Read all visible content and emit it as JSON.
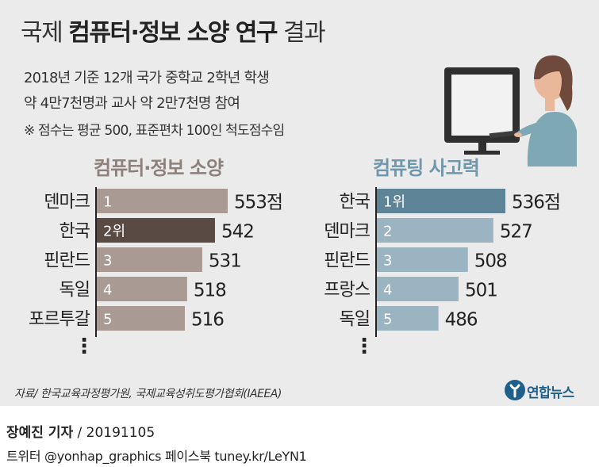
{
  "header": {
    "title_prefix": "국제",
    "title_bold": "컴퓨터·정보 소양 연구",
    "title_suffix": "결과",
    "subtitle_line1": "2018년 기준 12개 국가 중학교 2학년 학생",
    "subtitle_line2": "약 4만7천명과 교사 약 2만7천명 참여",
    "note": "※ 점수는 평균 500, 표준편차 100인 척도점수임"
  },
  "colors": {
    "left_bar": "#a99a94",
    "left_highlight": "#5a4a44",
    "right_bar": "#9bb4c1",
    "right_highlight": "#5d8597"
  },
  "chart_data": [
    {
      "type": "bar",
      "orientation": "horizontal",
      "title": "컴퓨터·정보 소양",
      "categories": [
        "덴마크",
        "한국",
        "핀란드",
        "독일",
        "포르투갈"
      ],
      "values": [
        553,
        542,
        531,
        518,
        516
      ],
      "ranks": [
        "1",
        "2위",
        "3",
        "4",
        "5"
      ],
      "value_labels": [
        "553점",
        "542",
        "531",
        "518",
        "516"
      ],
      "highlight_index": 1,
      "more": "⋮"
    },
    {
      "type": "bar",
      "orientation": "horizontal",
      "title": "컴퓨팅 사고력",
      "categories": [
        "한국",
        "덴마크",
        "핀란드",
        "프랑스",
        "독일"
      ],
      "values": [
        536,
        527,
        508,
        501,
        486
      ],
      "ranks": [
        "1위",
        "2",
        "3",
        "4",
        "5"
      ],
      "value_labels": [
        "536점",
        "527",
        "508",
        "501",
        "486"
      ],
      "highlight_index": 0,
      "more": "⋮"
    }
  ],
  "footer": {
    "source": "자료/ 한국교육과정평가원, 국제교육성취도평가협회(IAEEA)",
    "logo_text": "연합뉴스",
    "reporter_name": "장예진 기자",
    "reporter_date": " / 20191105",
    "twitter": "트위터 @yonhap_graphics  페이스북 tuney.kr/LeYN1"
  }
}
